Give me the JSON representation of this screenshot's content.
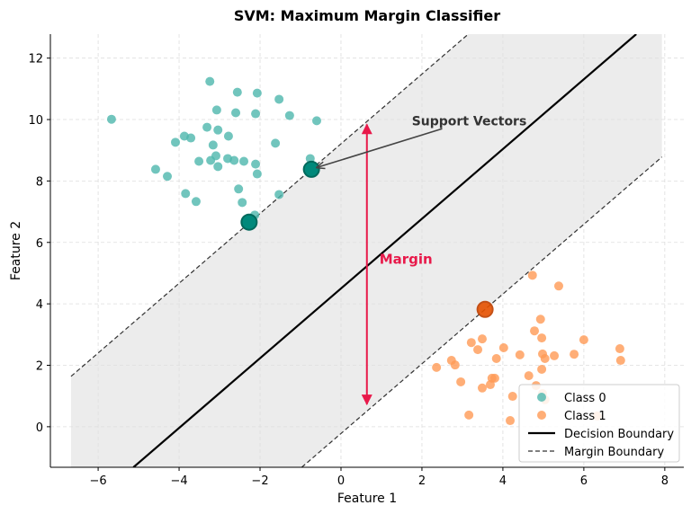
{
  "chart_data": {
    "type": "scatter",
    "title": "SVM: Maximum Margin Classifier",
    "xlabel": "Feature 1",
    "ylabel": "Feature 2",
    "xlim": [
      -7.18,
      8.47
    ],
    "ylim": [
      -1.32,
      12.78
    ],
    "xticks": [
      -6,
      -4,
      -2,
      0,
      2,
      4,
      6,
      8
    ],
    "yticks": [
      0,
      2,
      4,
      6,
      8,
      10,
      12
    ],
    "grid": true,
    "legend_position": "bottom-right",
    "colors": {
      "class0": "#4db6ac",
      "class1": "#ff9a55",
      "sv0": "#00897b",
      "sv1": "#e65100",
      "margin": "#e8194a",
      "band": "#e0e0e0"
    },
    "series": [
      {
        "name": "Class 0",
        "points": [
          [
            -5.67,
            10.01
          ],
          [
            -3.24,
            11.24
          ],
          [
            -2.56,
            10.89
          ],
          [
            -2.07,
            10.86
          ],
          [
            -3.07,
            10.31
          ],
          [
            -1.53,
            10.66
          ],
          [
            -2.6,
            10.22
          ],
          [
            -2.11,
            10.19
          ],
          [
            -1.27,
            10.13
          ],
          [
            -0.6,
            9.96
          ],
          [
            -3.31,
            9.75
          ],
          [
            -3.04,
            9.66
          ],
          [
            -3.87,
            9.46
          ],
          [
            -4.09,
            9.26
          ],
          [
            -3.71,
            9.4
          ],
          [
            -2.78,
            9.46
          ],
          [
            -3.16,
            9.17
          ],
          [
            -1.62,
            9.23
          ],
          [
            -3.09,
            8.82
          ],
          [
            -2.8,
            8.73
          ],
          [
            -3.22,
            8.67
          ],
          [
            -3.51,
            8.64
          ],
          [
            -2.64,
            8.67
          ],
          [
            -2.4,
            8.64
          ],
          [
            -2.11,
            8.55
          ],
          [
            -3.04,
            8.47
          ],
          [
            -0.76,
            8.73
          ],
          [
            -4.58,
            8.38
          ],
          [
            -4.29,
            8.15
          ],
          [
            -2.07,
            8.23
          ],
          [
            -3.84,
            7.59
          ],
          [
            -3.58,
            7.33
          ],
          [
            -2.53,
            7.74
          ],
          [
            -1.53,
            7.56
          ],
          [
            -2.44,
            7.3
          ],
          [
            -2.13,
            6.89
          ]
        ]
      },
      {
        "name": "Class 1",
        "points": [
          [
            4.73,
            4.93
          ],
          [
            5.38,
            4.58
          ],
          [
            4.93,
            3.5
          ],
          [
            4.78,
            3.12
          ],
          [
            4.96,
            2.89
          ],
          [
            6.0,
            2.83
          ],
          [
            3.22,
            2.74
          ],
          [
            3.49,
            2.86
          ],
          [
            3.38,
            2.51
          ],
          [
            4.02,
            2.57
          ],
          [
            6.89,
            2.54
          ],
          [
            4.42,
            2.34
          ],
          [
            4.98,
            2.37
          ],
          [
            5.04,
            2.22
          ],
          [
            5.27,
            2.31
          ],
          [
            5.76,
            2.36
          ],
          [
            3.84,
            2.22
          ],
          [
            6.91,
            2.16
          ],
          [
            2.73,
            2.16
          ],
          [
            2.82,
            2.01
          ],
          [
            2.36,
            1.93
          ],
          [
            4.96,
            1.87
          ],
          [
            4.64,
            1.66
          ],
          [
            3.73,
            1.58
          ],
          [
            3.8,
            1.58
          ],
          [
            3.69,
            1.37
          ],
          [
            4.82,
            1.34
          ],
          [
            3.49,
            1.26
          ],
          [
            2.96,
            1.46
          ],
          [
            4.24,
            0.99
          ],
          [
            4.98,
            1.08
          ],
          [
            3.16,
            0.38
          ],
          [
            4.18,
            0.2
          ],
          [
            6.33,
            0.35
          ],
          [
            5.04,
            0.88
          ]
        ]
      }
    ],
    "support_vectors": {
      "class0": [
        [
          -2.27,
          6.66
        ],
        [
          -0.73,
          8.38
        ]
      ],
      "class1": [
        [
          3.56,
          3.82
        ]
      ]
    },
    "decision_boundary": {
      "slope": 1.135,
      "intercept": 4.5,
      "label": "Decision Boundary"
    },
    "margin_boundaries": {
      "slope": 1.135,
      "intercepts": [
        9.21,
        -0.22
      ],
      "x_range": [
        -6.67,
        7.93
      ],
      "label": "Margin Boundary"
    },
    "annotations": {
      "support_vectors": {
        "text": "Support Vectors",
        "text_at": [
          1.75,
          9.95
        ],
        "arrow_from": [
          2.5,
          9.7
        ],
        "arrow_to": [
          -0.73,
          8.38
        ]
      },
      "margin": {
        "text": "Margin",
        "text_at": [
          0.95,
          5.45
        ],
        "arrow_x": 0.64,
        "arrow_y": [
          9.84,
          0.73
        ]
      }
    },
    "legend": [
      "Class 0",
      "Class 1",
      "Decision Boundary",
      "Margin Boundary"
    ]
  }
}
